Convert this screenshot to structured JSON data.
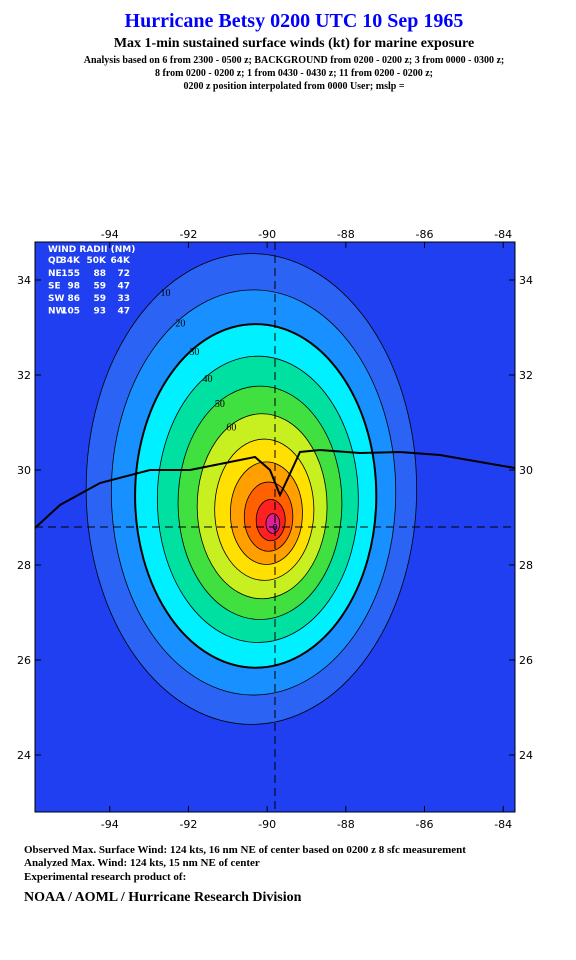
{
  "chart_data": {
    "type": "contour",
    "title": "Hurricane Betsy 0200 UTC 10 Sep 1965",
    "subtitle": "Max 1-min sustained surface winds (kt) for marine exposure",
    "notes": [
      "Analysis based on  6 from 2300 - 0500 z;  BACKGROUND from 0200 - 0200 z;  3 from 0000 - 0300 z;",
      "8 from 0200 - 0200 z;  1 from 0430 - 0430 z;  11 from 0200 - 0200 z;",
      "0200 z position interpolated from 0000 User; mslp ="
    ],
    "footer": [
      "Observed Max. Surface Wind: 124 kts, 16 nm NE of center based on 0200 z 8 sfc measurement",
      "Analyzed Max. Wind: 124 kts, 15 nm NE of center",
      "Experimental research product of:"
    ],
    "organization": "NOAA / AOML / Hurricane Research Division",
    "xlim": [
      -95.9,
      -83.7
    ],
    "ylim": [
      22.8,
      34.8
    ],
    "xticks": [
      -94,
      -92,
      -90,
      -88,
      -86,
      -84
    ],
    "yticks": [
      24,
      26,
      28,
      30,
      32,
      34
    ],
    "center": {
      "x": -89.8,
      "y": 28.8
    },
    "background_color": "#1f3ff0",
    "contours": [
      {
        "level": 10,
        "color": "#2b63f5",
        "labeled": true
      },
      {
        "level": 20,
        "color": "#1990ff",
        "labeled": true
      },
      {
        "level": 30,
        "color": "#00f0ff",
        "labeled": true
      },
      {
        "level": 40,
        "color": "#00e0a0",
        "labeled": true
      },
      {
        "level": 50,
        "color": "#40e040",
        "labeled": true
      },
      {
        "level": 60,
        "color": "#c8f020",
        "labeled": true
      },
      {
        "level": 70,
        "color": "#ffe000",
        "labeled": false
      },
      {
        "level": 80,
        "color": "#ffa000",
        "labeled": false
      },
      {
        "level": 90,
        "color": "#ff6000",
        "labeled": false
      },
      {
        "level": 100,
        "color": "#ff2020",
        "labeled": false
      },
      {
        "level": 110,
        "color": "#e02090",
        "labeled": false
      },
      {
        "level": 120,
        "color": "#c020e0",
        "labeled": false
      }
    ],
    "wind_radii": {
      "title": "WIND RADII (NM)",
      "columns": [
        "QD",
        "34K",
        "50K",
        "64K"
      ],
      "rows": [
        [
          "NE",
          155,
          88,
          72
        ],
        [
          "SE",
          98,
          59,
          47
        ],
        [
          "SW",
          86,
          59,
          33
        ],
        [
          "NW",
          105,
          93,
          47
        ]
      ]
    }
  }
}
